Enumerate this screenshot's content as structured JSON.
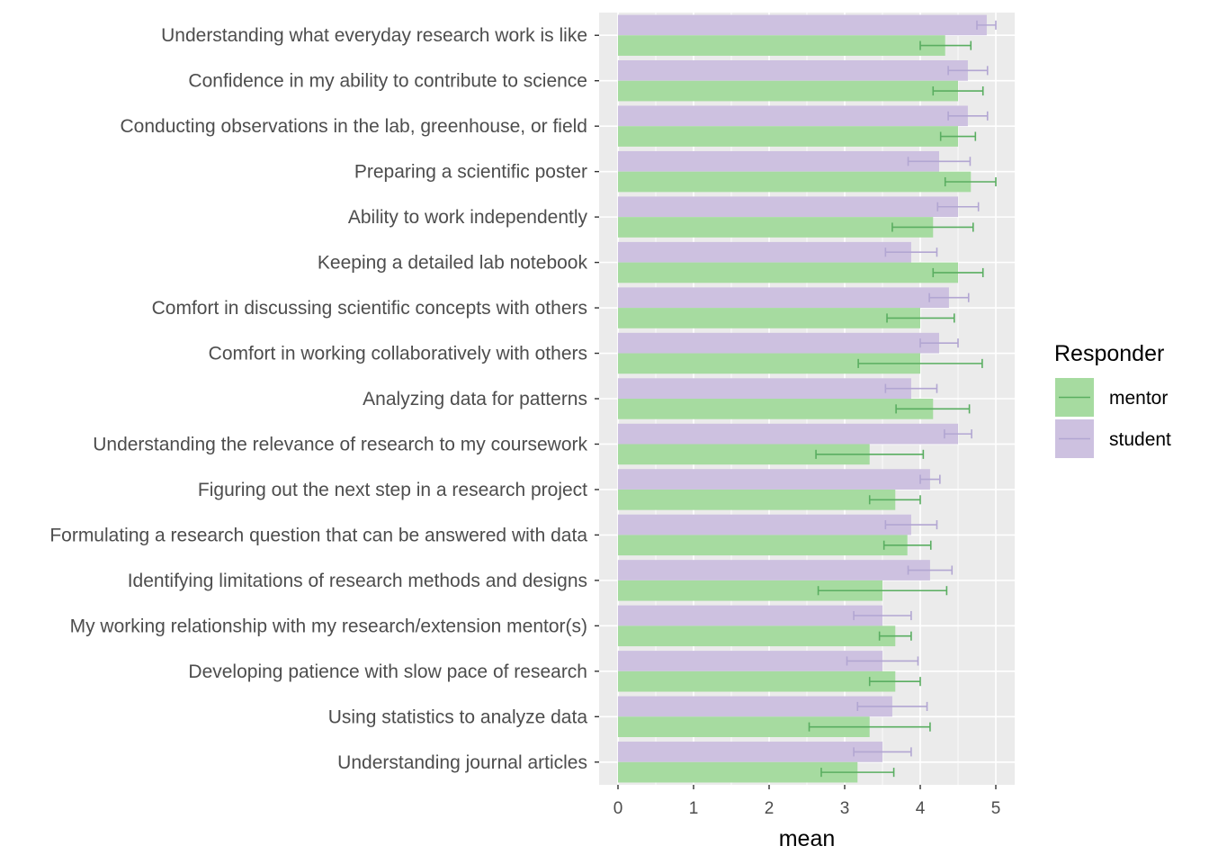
{
  "chart_data": {
    "type": "bar",
    "orientation": "horizontal",
    "xlabel": "mean",
    "ylabel": "",
    "xlim": [
      -0.25,
      5.25
    ],
    "xticks": [
      0,
      1,
      2,
      3,
      4,
      5
    ],
    "grid": true,
    "legend": {
      "title": "Responder",
      "position": "right"
    },
    "categories": [
      "Understanding what everyday research work is like",
      "Confidence in my ability to contribute to science",
      "Conducting observations in the lab, greenhouse, or field",
      "Preparing a scientific poster",
      "Ability to work independently",
      "Keeping a detailed lab notebook",
      "Comfort in discussing scientific concepts with others",
      "Comfort in working collaboratively with others",
      "Analyzing data for patterns",
      "Understanding the relevance of research to my coursework",
      "Figuring out the next step in a research project",
      "Formulating a research question that can be answered with data",
      "Identifying limitations of research methods and designs",
      "My working relationship with my research/extension mentor(s)",
      "Developing patience with slow pace of research",
      "Using statistics to analyze data",
      "Understanding journal articles"
    ],
    "series": [
      {
        "name": "mentor",
        "color": "#a6dba0",
        "error_color": "#5aae61",
        "values": [
          4.33,
          4.5,
          4.5,
          4.67,
          4.17,
          4.5,
          4.0,
          4.0,
          4.17,
          3.33,
          3.67,
          3.83,
          3.5,
          3.67,
          3.67,
          3.33,
          3.17
        ],
        "err_low": [
          4.0,
          4.17,
          4.27,
          4.33,
          3.63,
          4.17,
          3.56,
          3.18,
          3.68,
          2.62,
          3.33,
          3.52,
          2.65,
          3.46,
          3.33,
          2.53,
          2.69
        ],
        "err_high": [
          4.67,
          4.83,
          4.73,
          5.0,
          4.7,
          4.83,
          4.45,
          4.82,
          4.65,
          4.04,
          4.0,
          4.14,
          4.35,
          3.88,
          4.0,
          4.13,
          3.65
        ]
      },
      {
        "name": "student",
        "color": "#cdc1e0",
        "error_color": "#b2a6d2",
        "values": [
          4.88,
          4.63,
          4.63,
          4.25,
          4.5,
          3.88,
          4.38,
          4.25,
          3.88,
          4.5,
          4.13,
          3.88,
          4.13,
          3.5,
          3.5,
          3.63,
          3.5
        ],
        "err_low": [
          4.75,
          4.37,
          4.37,
          3.84,
          4.23,
          3.54,
          4.12,
          4.0,
          3.54,
          4.32,
          4.0,
          3.54,
          3.84,
          3.12,
          3.03,
          3.17,
          3.12
        ],
        "err_high": [
          5.0,
          4.89,
          4.89,
          4.66,
          4.77,
          4.22,
          4.64,
          4.5,
          4.22,
          4.68,
          4.26,
          4.22,
          4.42,
          3.88,
          3.97,
          4.09,
          3.88
        ]
      }
    ]
  }
}
